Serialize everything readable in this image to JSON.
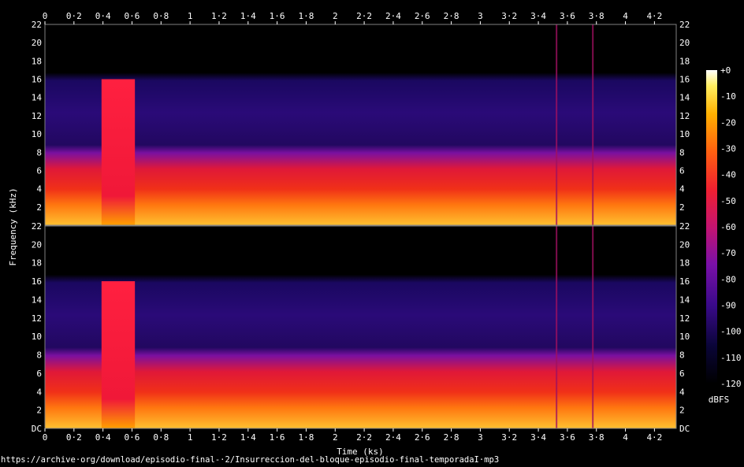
{
  "chart_data": {
    "type": "heatmap",
    "title": "",
    "xlabel": "Time (ks)",
    "ylabel": "Frequency (kHz)",
    "xlim": [
      0,
      4.35
    ],
    "x_ticks": [
      "0",
      "0·2",
      "0·4",
      "0·6",
      "0·8",
      "1",
      "1·2",
      "1·4",
      "1·6",
      "1·8",
      "2",
      "2·2",
      "2·4",
      "2·6",
      "2·8",
      "3",
      "3·2",
      "3·4",
      "3·6",
      "3·8",
      "4",
      "4·2"
    ],
    "ylim": [
      0,
      22
    ],
    "y_ticks_top": [
      "22",
      "20",
      "18",
      "16",
      "14",
      "12",
      "10",
      "8",
      "6",
      "4",
      "2"
    ],
    "y_ticks_bottom": [
      "22",
      "20",
      "18",
      "16",
      "14",
      "12",
      "10",
      "8",
      "6",
      "4",
      "2",
      "DC"
    ],
    "channels": 2,
    "colorbar": {
      "label": "dBFS",
      "range": [
        -120,
        0
      ],
      "ticks": [
        "+0",
        "-10",
        "-20",
        "-30",
        "-40",
        "-50",
        "-60",
        "-70",
        "-80",
        "-90",
        "-100",
        "-110",
        "-120"
      ]
    },
    "features": {
      "cutoff_khz": 16,
      "high_band_segment_ks": [
        0.39,
        0.62
      ],
      "dense_energy_below_khz": 8,
      "spike_times_ks": [
        3.52,
        3.77
      ]
    }
  },
  "footer": {
    "url": "https://archive·org/download/episodio-final-·2/Insurreccion-del-bloque-episodio-final-temporadaI·mp3"
  }
}
